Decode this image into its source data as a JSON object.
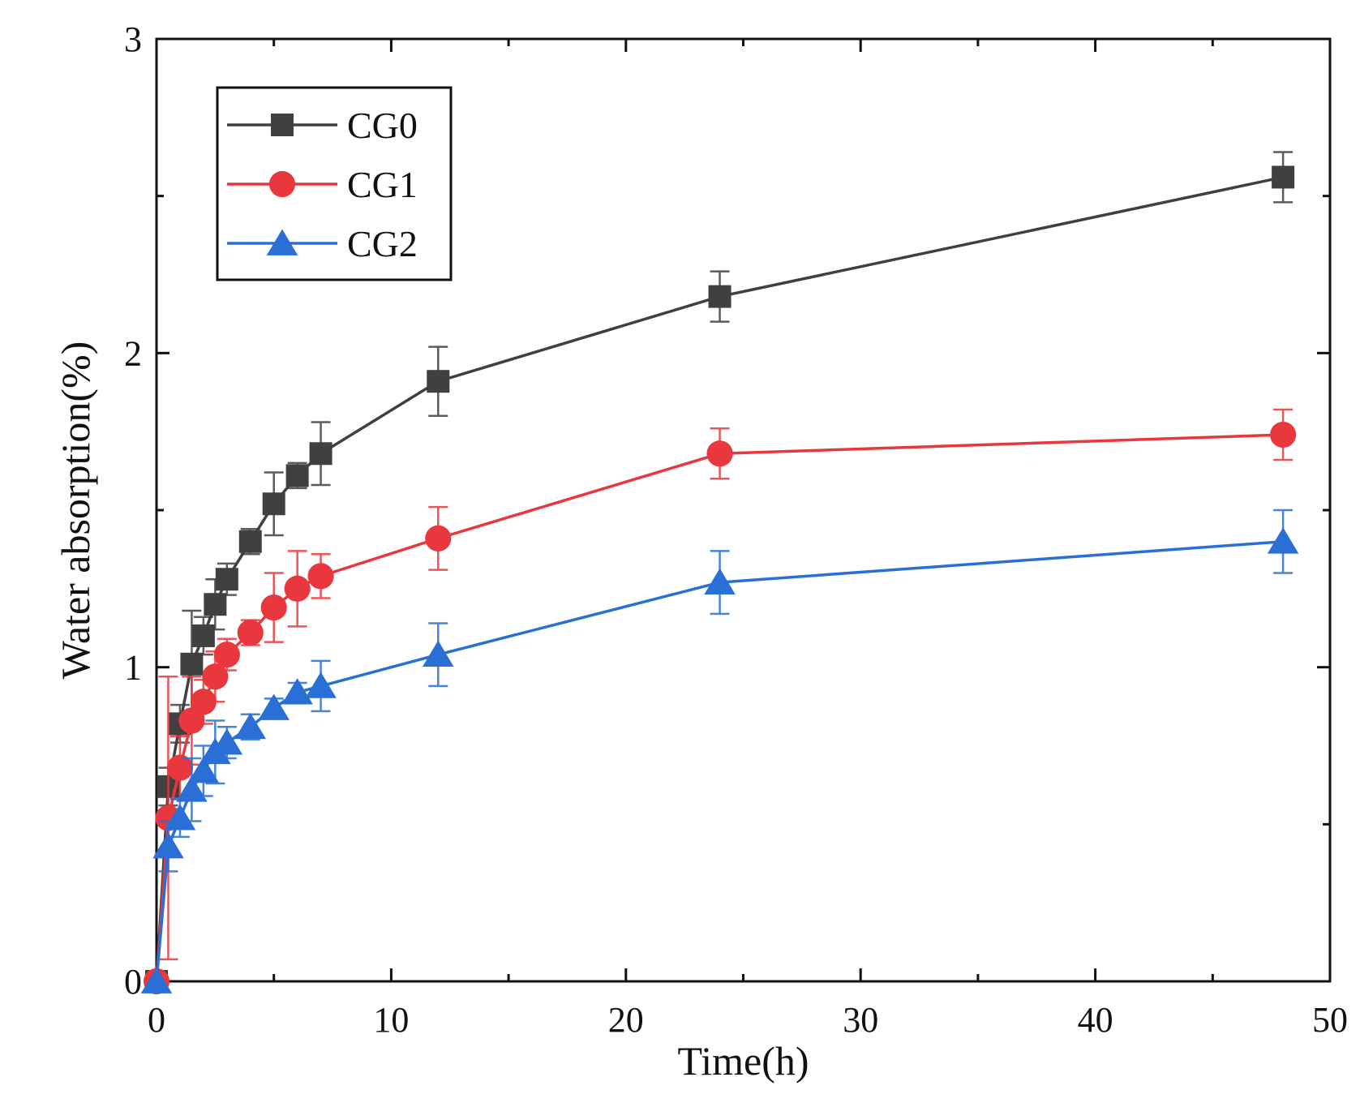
{
  "chart_data": {
    "type": "line",
    "xlabel": "Time(h)",
    "ylabel": "Water absorption(%)",
    "xlim": [
      0,
      50
    ],
    "ylim": [
      0,
      3
    ],
    "x_ticks": [
      0,
      10,
      20,
      30,
      40,
      50
    ],
    "y_ticks": [
      0,
      1,
      2,
      3
    ],
    "grid": false,
    "legend_position": "top-left",
    "series": [
      {
        "name": "CG0",
        "color": "#404040",
        "marker": "square",
        "x": [
          0,
          0.5,
          1,
          1.5,
          2,
          2.5,
          3,
          4,
          5,
          6,
          7,
          12,
          24,
          48
        ],
        "y": [
          0,
          0.62,
          0.82,
          1.01,
          1.1,
          1.2,
          1.28,
          1.4,
          1.52,
          1.61,
          1.68,
          1.91,
          2.18,
          2.56
        ],
        "error": [
          0,
          0.06,
          0.06,
          0.17,
          0.06,
          0.08,
          0.05,
          0.04,
          0.1,
          0.04,
          0.1,
          0.11,
          0.08,
          0.08
        ]
      },
      {
        "name": "CG1",
        "color": "#e8383d",
        "marker": "circle",
        "x": [
          0,
          0.5,
          1,
          1.5,
          2,
          2.5,
          3,
          4,
          5,
          6,
          7,
          12,
          24,
          48
        ],
        "y": [
          0,
          0.52,
          0.68,
          0.83,
          0.89,
          0.97,
          1.04,
          1.11,
          1.19,
          1.25,
          1.29,
          1.41,
          1.68,
          1.74
        ],
        "error": [
          0,
          0.45,
          0.1,
          0.14,
          0.07,
          0.08,
          0.05,
          0.04,
          0.11,
          0.12,
          0.07,
          0.1,
          0.08,
          0.08
        ]
      },
      {
        "name": "CG2",
        "color": "#2a6fd6",
        "marker": "triangle",
        "x": [
          0,
          0.5,
          1,
          1.5,
          2,
          2.5,
          3,
          4,
          5,
          6,
          7,
          12,
          24,
          48
        ],
        "y": [
          0,
          0.43,
          0.52,
          0.61,
          0.67,
          0.73,
          0.76,
          0.81,
          0.87,
          0.92,
          0.94,
          1.04,
          1.27,
          1.4
        ],
        "error": [
          0,
          0.08,
          0.06,
          0.1,
          0.08,
          0.1,
          0.05,
          0.04,
          0.03,
          0.03,
          0.08,
          0.1,
          0.1,
          0.1
        ]
      }
    ]
  }
}
